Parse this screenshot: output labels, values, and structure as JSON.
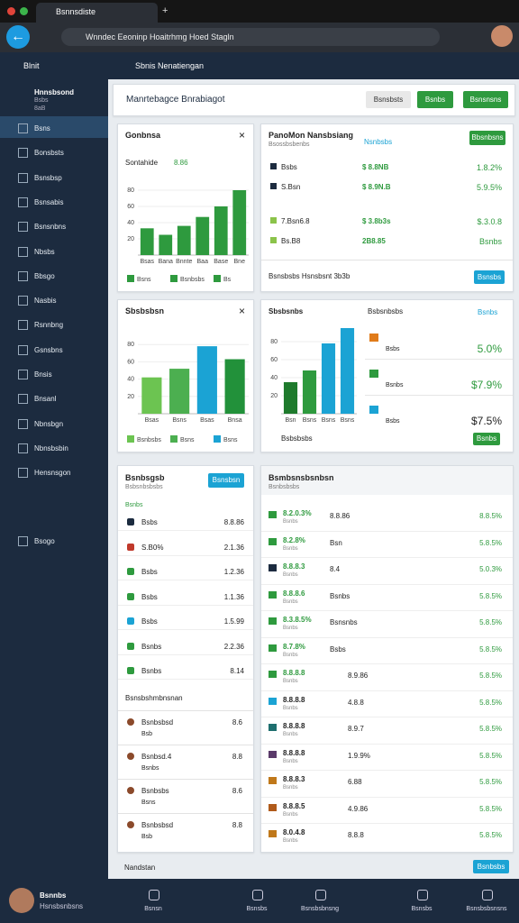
{
  "browser": {
    "tab": "Bsnnsdiste",
    "url": "Wnndec Eeoninp Hoaitrhmg Hoed Stagln"
  },
  "sidebar": {
    "brand": "Blnit",
    "profile": {
      "name": "Hnnsbsond",
      "line1": "Bsbs",
      "line2": "8aB"
    },
    "items": [
      "Bsns",
      "Bonsbsts",
      "Bsnsbsp",
      "Bsnsabis",
      "Bsnsnbns",
      "Nbsbs",
      "Bbsgo",
      "Nasbis",
      "Rsnnbng",
      "Gsnsbns",
      "Bnsis",
      "Bnsanl",
      "Nbnsbgn",
      "Nbnsbsbin",
      "Hensnsgon",
      "Bsogo"
    ]
  },
  "header": {
    "title": "Sbnis Nenatiengan"
  },
  "toolbar": {
    "title": "Manrtebagce Bnrabiagot",
    "buttons": [
      "Bsnsbsts",
      "Bsnbs",
      "Bsnsnsns"
    ]
  },
  "chart_data": [
    {
      "type": "bar",
      "title": "Gonbnsa",
      "subtitle": "Sontahide",
      "badge": "8.86",
      "categories": [
        "Bsas",
        "Bana",
        "Bnnte",
        "Baa",
        "Base",
        "Bne"
      ],
      "values": [
        33,
        25,
        36,
        47,
        60,
        80
      ],
      "colors": [
        "#2e9a3e",
        "#2e9a3e",
        "#2e9a3e",
        "#2e9a3e",
        "#2e9a3e",
        "#2e9a3e"
      ],
      "ylim": [
        0,
        100
      ],
      "yticks": [
        20,
        40,
        60,
        80
      ],
      "grid": true,
      "legend_items": [
        "Bsns",
        "Bsnbsbs",
        "Bs"
      ]
    },
    {
      "type": "bar",
      "title": "Sbsbsbsn",
      "categories": [
        "Bsas",
        "Bsns",
        "Bsas",
        "Bnsa"
      ],
      "values": [
        42,
        52,
        78,
        63
      ],
      "colors": [
        "#6cc451",
        "#4caf50",
        "#1ba3d4",
        "#22913a"
      ],
      "ylim": [
        0,
        100
      ],
      "yticks": [
        20,
        40,
        60,
        80
      ],
      "grid": true,
      "legend_items": [
        "Bsnbsbs",
        "Bsns",
        "Bsns"
      ]
    },
    {
      "type": "bar",
      "categories": [
        "Bsn",
        "Bsns",
        "Bsns",
        "Bsns"
      ],
      "values": [
        35,
        48,
        78,
        95
      ],
      "colors": [
        "#1e7a2c",
        "#2e9a3e",
        "#1ba3d4",
        "#1ba3d4"
      ],
      "ylim": [
        0,
        100
      ],
      "yticks": [
        20,
        40,
        60,
        80
      ],
      "grid": true
    }
  ],
  "summary": {
    "title": "PanoMon Nansbsiang",
    "subtitle": "Bsossbsbenbs",
    "link": "Nsnbsbs",
    "button": "Bbsnbsns",
    "rows": [
      {
        "label": "Bsbs",
        "mid": "$ 8.8NB",
        "value": "1.8.2%"
      },
      {
        "label": "S.Bsn",
        "mid": "$ 8.9N.B",
        "value": "5.9.5%"
      },
      {
        "label": "7.Bsn6.8",
        "mid": "$ 3.8b3s",
        "value": "$.3.0.8"
      },
      {
        "label": "Bs.B8",
        "mid": "2B8.85",
        "value": "Bsnbs"
      }
    ],
    "footer": "Bsnsbsbs Hsnsbsnt 3b3b",
    "footer_button": "Bsnsbs"
  },
  "card4": {
    "title": "Sbsbsnbs",
    "subtitle": "Bsbsnbsbs",
    "link": "Bsnbs",
    "rows": [
      {
        "label": "Bsbs",
        "value": "5.0%"
      },
      {
        "label": "Bsnbs",
        "value": "$7.9%"
      },
      {
        "label": "Bsbs",
        "value": "$7.5%"
      }
    ],
    "footer_label": "Bsbsbsbs",
    "footer_button": "Bsnbs"
  },
  "list1": {
    "title": "Bsnbsgsb",
    "subtitle": "Bsbsnbsbsbs",
    "button": "Bsnsbsn",
    "heading": "Bsnbs",
    "rows": [
      {
        "label": "Bsbs",
        "value": "8.8.86"
      },
      {
        "label": "S.B0%",
        "value": "2.1.36"
      },
      {
        "label": "Bsbs",
        "value": "1.2.36"
      },
      {
        "label": "Bsbs",
        "value": "1.1.36"
      },
      {
        "label": "Bsbs",
        "value": "1.5.99"
      },
      {
        "label": "Bsnbs",
        "value": "2.2.36"
      },
      {
        "label": "Bsnbs",
        "value": "8.14"
      }
    ],
    "section": "Bsnsbshmbnsnan",
    "section_rows": [
      {
        "label": "Bsnbsbsd",
        "sub": "Bsb",
        "value": "8.6"
      },
      {
        "label": "Bsnbsd.4",
        "sub": "Bsnbs",
        "value": "8.8"
      },
      {
        "label": "Bsnbsbs",
        "sub": "Bsns",
        "value": "8.6"
      },
      {
        "label": "Bsnbsbsd",
        "sub": "Bsb",
        "value": "8.8"
      }
    ]
  },
  "list2": {
    "title": "Bsmbsnsbsnbsn",
    "subtitle": "Bsnbsbsbs",
    "rows": [
      {
        "label": "8.2.0.3%",
        "sub": "Bsnbs",
        "mid": "8.8.86",
        "value": "8.8.5%"
      },
      {
        "label": "8.2.8%",
        "sub": "Bsnbs",
        "mid": "Bsn",
        "value": "5.8.5%"
      },
      {
        "label": "8.8.8.3",
        "sub": "Bsnbs",
        "mid": "8.4",
        "value": "5.0.3%"
      },
      {
        "label": "8.8.8.6",
        "sub": "Bsnbs",
        "mid": "Bsnbs",
        "value": "5.8.5%"
      },
      {
        "label": "8.3.8.5%",
        "sub": "Bsnbs",
        "mid": "Bsnsnbs",
        "value": "5.8.5%"
      },
      {
        "label": "8.7.8%",
        "sub": "Bsnbs",
        "mid": "Bsbs",
        "value": "5.8.5%"
      },
      {
        "label": "8.8.8.8",
        "sub": "Bsnbs",
        "mid": "8.9.86",
        "value": "5.8.5%"
      },
      {
        "label": "8.8.8.8",
        "sub": "Bsnbs",
        "mid": "4.8.8",
        "value": "5.8.5%"
      },
      {
        "label": "8.8.8.8",
        "sub": "Bsnbs",
        "mid": "8.9.7",
        "value": "5.8.5%"
      },
      {
        "label": "8.8.8.8",
        "sub": "Bsnbs",
        "mid": "1.9.9%",
        "value": "5.8.5%"
      },
      {
        "label": "8.8.8.3",
        "sub": "Bsnbs",
        "mid": "6.88",
        "value": "5.8.5%"
      },
      {
        "label": "8.8.8.5",
        "sub": "Bsnbs",
        "mid": "4.9.86",
        "value": "5.8.5%"
      },
      {
        "label": "8.0.4.8",
        "sub": "Bsnbs",
        "mid": "8.8.8",
        "value": "5.8.5%"
      }
    ]
  },
  "footer": {
    "label": "Nandstan",
    "button": "Bsnbsbs"
  },
  "bottom": {
    "user": "Bsnnbs",
    "user_sub": "Hsnsbsnbsns",
    "nav": [
      "Bsnsn",
      "Bsnsbs",
      "Bsnsbsbnsng",
      "Bsnsbs",
      "Bsnsbsbsnsns"
    ]
  }
}
